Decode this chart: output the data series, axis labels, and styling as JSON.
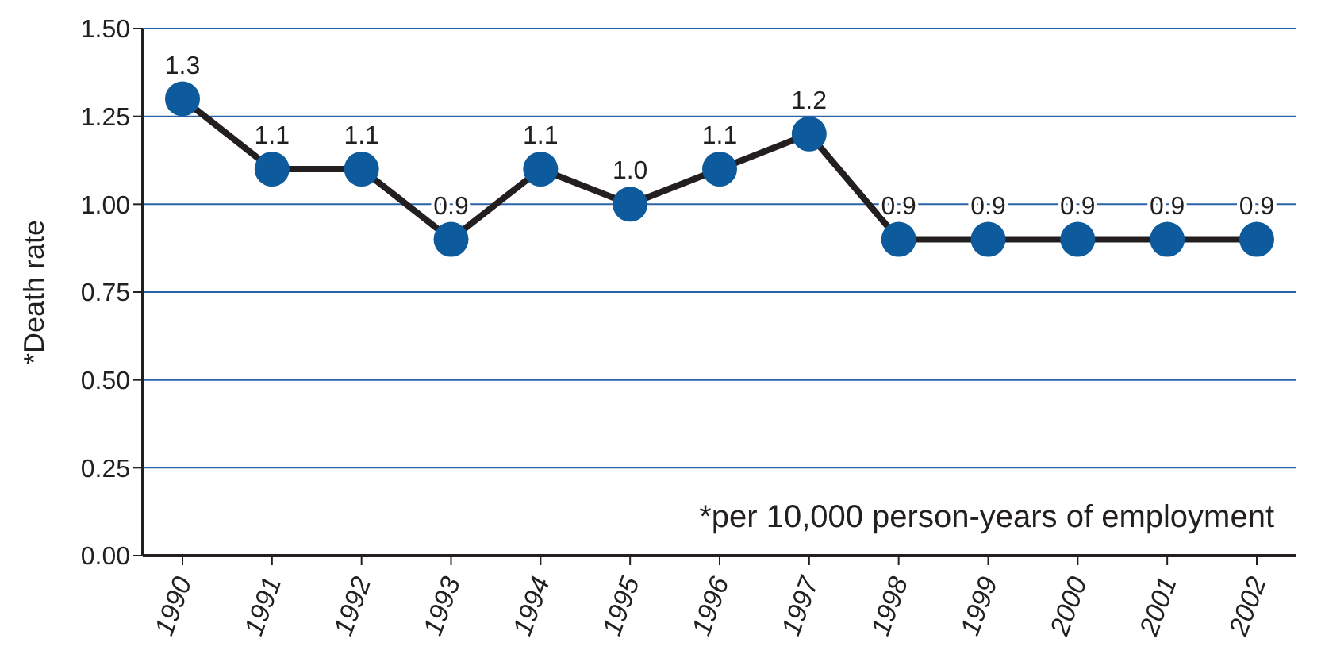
{
  "chart_data": {
    "type": "line",
    "ylabel": "*Death rate",
    "categories": [
      "1990",
      "1991",
      "1992",
      "1993",
      "1994",
      "1995",
      "1996",
      "1997",
      "1998",
      "1999",
      "2000",
      "2001",
      "2002"
    ],
    "series": [
      {
        "color": "#231f20",
        "colors": [
          "#0d5b9c",
          "#0d5b9c",
          "#0d5b9c",
          "#0d5b9c",
          "#0d5b9c",
          "#0d5b9c",
          "#0d5b9c",
          "#0d5b9c",
          "#0d5b9c",
          "#0d5b9c",
          "#0d5b9c",
          "#0d5b9c",
          "#0d5b9c"
        ],
        "values": [
          1.3,
          1.1,
          1.1,
          0.9,
          1.1,
          1.0,
          1.1,
          1.2,
          0.9,
          0.9,
          0.9,
          0.9,
          0.9
        ],
        "value_labels": [
          "1.3",
          "1.1",
          "1.1",
          "0.9",
          "1.1",
          "1.0",
          "1.1",
          "1.2",
          "0.9",
          "0.9",
          "0.9",
          "0.9",
          "0.9"
        ]
      }
    ],
    "ylim": [
      0,
      1.5
    ],
    "yticks": [
      {
        "value": 0,
        "label": "0.00"
      },
      {
        "value": 0.25,
        "label": "0.25"
      },
      {
        "value": 0.5,
        "label": "0.50"
      },
      {
        "value": 0.75,
        "label": "0.75"
      },
      {
        "value": 1,
        "label": "1.00"
      },
      {
        "value": 1.25,
        "label": "1.25"
      },
      {
        "value": 1.5,
        "label": "1.50"
      }
    ],
    "grid": "y",
    "marker": "circle",
    "line_style": "solid",
    "annotations": [
      "*per 10,000 person-years of employment"
    ]
  }
}
